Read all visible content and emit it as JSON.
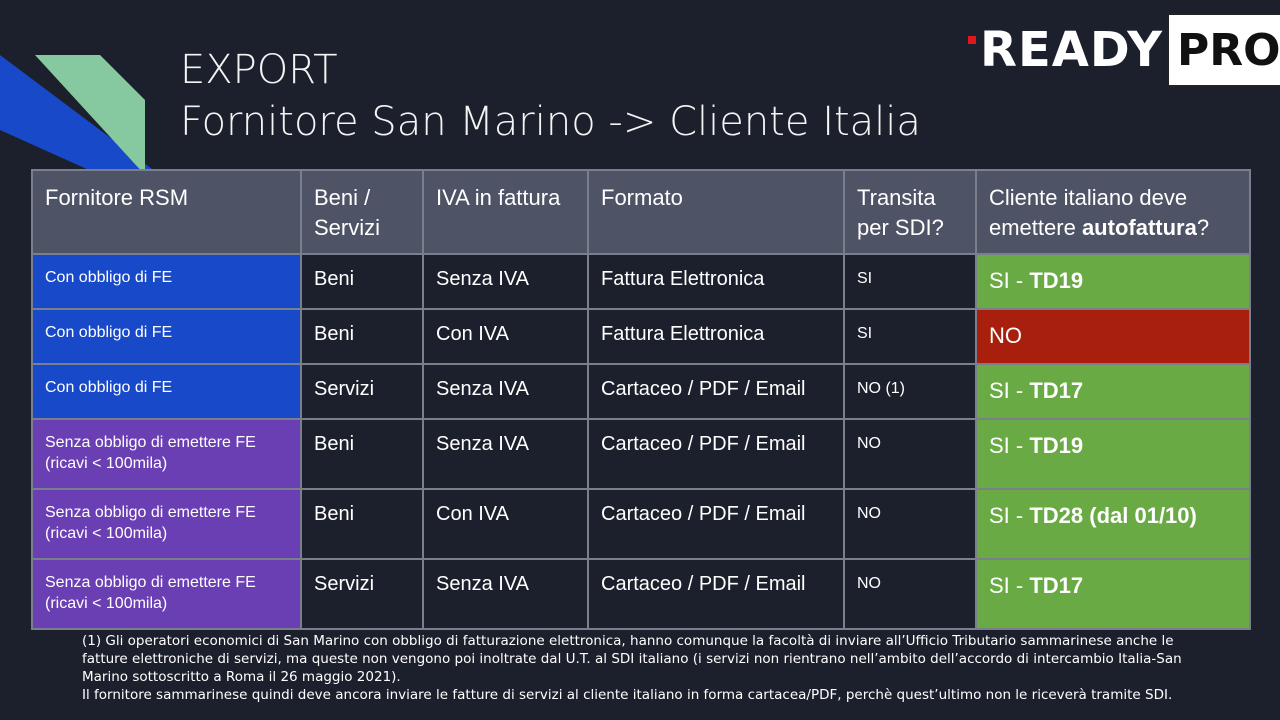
{
  "title": {
    "line1": "EXPORT",
    "line2": "Fornitore San Marino -> Cliente Italia"
  },
  "logo": {
    "ready": "READY",
    "pro": "PRO"
  },
  "colors": {
    "background": "#1c202c",
    "header": "#4e5466",
    "blue": "#1849c8",
    "purple": "#6a3fb3",
    "green": "#6aaa44",
    "red": "#a81f0d",
    "logo_accent": "#e0171b"
  },
  "table": {
    "headers": {
      "fornitore": "Fornitore RSM",
      "beni": "Beni / Servizi",
      "iva": "IVA in fattura",
      "formato": "Formato",
      "transita": "Transita per SDI?",
      "cliente_pre": "Cliente italiano deve emettere ",
      "cliente_bold": "autofattura",
      "cliente_post": "?"
    },
    "rows": [
      {
        "fornitore_l1": "Con obbligo di FE",
        "fornitore_l2": "",
        "beni": "Beni",
        "iva": "Senza IVA",
        "formato": "Fattura Elettronica",
        "transita": "SI",
        "cliente_pre": "SI - ",
        "cliente_bold": "TD19",
        "result": "green"
      },
      {
        "fornitore_l1": "Con obbligo di FE",
        "fornitore_l2": "",
        "beni": "Beni",
        "iva": "Con IVA",
        "formato": "Fattura Elettronica",
        "transita": "SI",
        "cliente_pre": "NO",
        "cliente_bold": "",
        "result": "red"
      },
      {
        "fornitore_l1": "Con obbligo di FE",
        "fornitore_l2": "",
        "beni": "Servizi",
        "iva": "Senza IVA",
        "formato": "Cartaceo / PDF / Email",
        "transita": "NO (1)",
        "cliente_pre": "SI - ",
        "cliente_bold": "TD17",
        "result": "green"
      },
      {
        "fornitore_l1": "Senza obbligo di emettere FE",
        "fornitore_l2": "(ricavi < 100mila)",
        "beni": "Beni",
        "iva": "Senza IVA",
        "formato": "Cartaceo / PDF / Email",
        "transita": "NO",
        "cliente_pre": "SI - ",
        "cliente_bold": "TD19",
        "result": "green"
      },
      {
        "fornitore_l1": "Senza obbligo di emettere FE",
        "fornitore_l2": "(ricavi < 100mila)",
        "beni": "Beni",
        "iva": "Con IVA",
        "formato": "Cartaceo / PDF / Email",
        "transita": "NO",
        "cliente_pre": "SI - ",
        "cliente_bold": "TD28 (dal 01/10)",
        "result": "green"
      },
      {
        "fornitore_l1": "Senza obbligo di emettere FE",
        "fornitore_l2": "(ricavi < 100mila)",
        "beni": "Servizi",
        "iva": "Senza IVA",
        "formato": "Cartaceo / PDF / Email",
        "transita": "NO",
        "cliente_pre": "SI - ",
        "cliente_bold": "TD17",
        "result": "green"
      }
    ]
  },
  "footnote": {
    "p1": "(1) Gli operatori economici di San Marino con obbligo di fatturazione elettronica, hanno comunque la facoltà di inviare all’Ufficio Tributario sammarinese anche le fatture elettroniche di servizi, ma queste non vengono poi inoltrate dal U.T. al SDI italiano (i servizi non rientrano nell’ambito dell’accordo di intercambio Italia-San Marino sottoscritto a Roma il 26 maggio 2021).",
    "p2": "Il fornitore sammarinese quindi deve ancora inviare le fatture di servizi al cliente italiano in forma cartacea/PDF, perchè quest’ultimo non le riceverà tramite SDI."
  }
}
